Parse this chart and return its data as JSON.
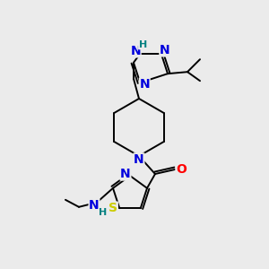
{
  "bg_color": "#ebebeb",
  "atom_colors": {
    "N": "#0000dd",
    "O": "#ff0000",
    "S": "#cccc00",
    "C": "#000000",
    "H_label": "#008080"
  },
  "bond_color": "#000000",
  "font_size_atoms": 10,
  "font_size_small": 8,
  "lw": 1.4
}
